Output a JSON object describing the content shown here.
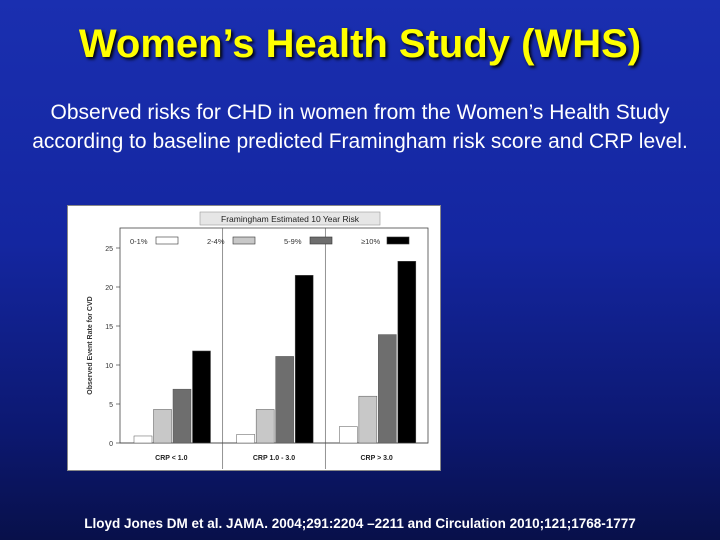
{
  "slide": {
    "title": "Women’s Health Study (WHS)",
    "subtitle": "Observed risks for CHD in women from the Women’s Health Study according to baseline predicted Framingham risk score and CRP level.",
    "citation": "Lloyd Jones DM et al. JAMA. 2004;291:2204 –2211 and Circulation 2010;121;1768-1777"
  },
  "chart_data": {
    "type": "bar",
    "title": "Framingham Estimated 10 Year Risk",
    "ylabel": "Observed Event Rate for CVD",
    "xlabel": "",
    "ylim": [
      0,
      25
    ],
    "yticks": [
      0,
      5,
      10,
      15,
      20,
      25
    ],
    "categories": [
      "CRP < 1.0",
      "CRP 1.0 - 3.0",
      "CRP > 3.0"
    ],
    "legend_position": "top",
    "series": [
      {
        "name": "0-1%",
        "color": "#ffffff",
        "values": [
          0.9,
          1.1,
          2.1
        ]
      },
      {
        "name": "2-4%",
        "color": "#c8c8c8",
        "values": [
          4.3,
          4.3,
          6.0
        ]
      },
      {
        "name": "5-9%",
        "color": "#6e6e6e",
        "values": [
          6.9,
          11.1,
          13.9
        ]
      },
      {
        "name": "≥10%",
        "color": "#000000",
        "values": [
          11.8,
          21.5,
          23.3
        ]
      }
    ]
  }
}
